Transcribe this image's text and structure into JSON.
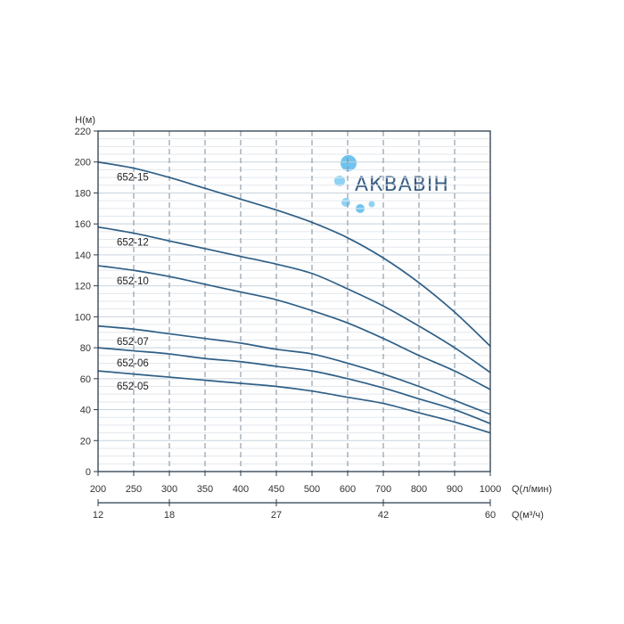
{
  "logo": {
    "text": "АКВАВІН"
  },
  "chart_data": {
    "type": "line",
    "title": "",
    "ylabel": "H(м)",
    "xlabel": "Q(л/мин)",
    "x2label": "Q(м³/ч)",
    "ylim": [
      0,
      220
    ],
    "yticks": [
      0,
      20,
      40,
      60,
      80,
      100,
      120,
      140,
      160,
      180,
      200,
      220
    ],
    "xticks": [
      "200",
      "250",
      "300",
      "350",
      "400",
      "450",
      "500",
      "600",
      "700",
      "800",
      "900",
      "1000"
    ],
    "x2ticks": [
      {
        "label": "12",
        "at": 0
      },
      {
        "label": "18",
        "at": 2
      },
      {
        "label": "27",
        "at": 5
      },
      {
        "label": "42",
        "at": 8
      },
      {
        "label": "60",
        "at": 11
      }
    ],
    "grid": true,
    "series": [
      {
        "name": "652-15",
        "values": [
          200,
          196,
          190,
          183,
          176,
          169,
          161,
          151,
          138,
          122,
          103,
          81
        ]
      },
      {
        "name": "652-12",
        "values": [
          158,
          154,
          149,
          144,
          139,
          134,
          128,
          118,
          107,
          94,
          80,
          64
        ]
      },
      {
        "name": "652-10",
        "values": [
          133,
          130,
          126,
          121,
          116,
          111,
          104,
          96,
          86,
          75,
          65,
          53
        ]
      },
      {
        "name": "652-07",
        "values": [
          94,
          92,
          89,
          86,
          83,
          79,
          76,
          70,
          63,
          55,
          46,
          37
        ]
      },
      {
        "name": "652-06",
        "values": [
          80,
          78,
          76,
          73,
          71,
          68,
          65,
          60,
          54,
          47,
          40,
          31
        ]
      },
      {
        "name": "652-05",
        "values": [
          65,
          63,
          61,
          59,
          57,
          55,
          52,
          48,
          44,
          38,
          32,
          25
        ]
      }
    ],
    "line_color": "#2f5f86"
  }
}
